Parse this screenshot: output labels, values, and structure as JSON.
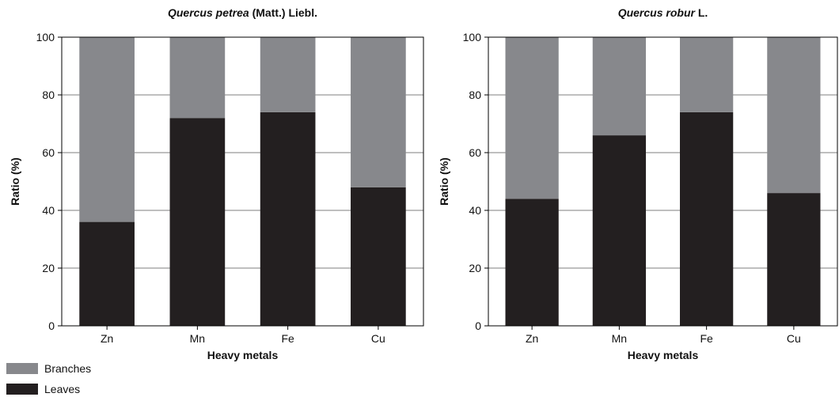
{
  "colors": {
    "branches": "#87888c",
    "leaves": "#231f20",
    "grid": "#555555",
    "axis": "#000000"
  },
  "legend": [
    {
      "label": "Branches",
      "color": "#87888c"
    },
    {
      "label": "Leaves",
      "color": "#231f20"
    }
  ],
  "chart_data": [
    {
      "type": "bar",
      "stacked": true,
      "title": "Quercus petrea (Matt.) Liebl.",
      "title_italic": "Quercus petrea",
      "title_rest": " (Matt.) Liebl.",
      "xlabel": "Heavy metals",
      "ylabel": "Ratio (%)",
      "ylim": [
        0,
        100
      ],
      "yticks": [
        0,
        20,
        40,
        60,
        80,
        100
      ],
      "categories": [
        "Zn",
        "Mn",
        "Fe",
        "Cu"
      ],
      "grid": true,
      "series": [
        {
          "name": "Leaves",
          "values": [
            36,
            72,
            74,
            48
          ]
        },
        {
          "name": "Branches",
          "values": [
            64,
            28,
            26,
            52
          ]
        }
      ]
    },
    {
      "type": "bar",
      "stacked": true,
      "title": "Quercus robur L.",
      "title_italic": "Quercus robur",
      "title_rest": " L.",
      "xlabel": "Heavy metals",
      "ylabel": "Ratio (%)",
      "ylim": [
        0,
        100
      ],
      "yticks": [
        0,
        20,
        40,
        60,
        80,
        100
      ],
      "categories": [
        "Zn",
        "Mn",
        "Fe",
        "Cu"
      ],
      "grid": true,
      "series": [
        {
          "name": "Leaves",
          "values": [
            44,
            66,
            74,
            46
          ]
        },
        {
          "name": "Branches",
          "values": [
            56,
            34,
            26,
            54
          ]
        }
      ]
    }
  ]
}
